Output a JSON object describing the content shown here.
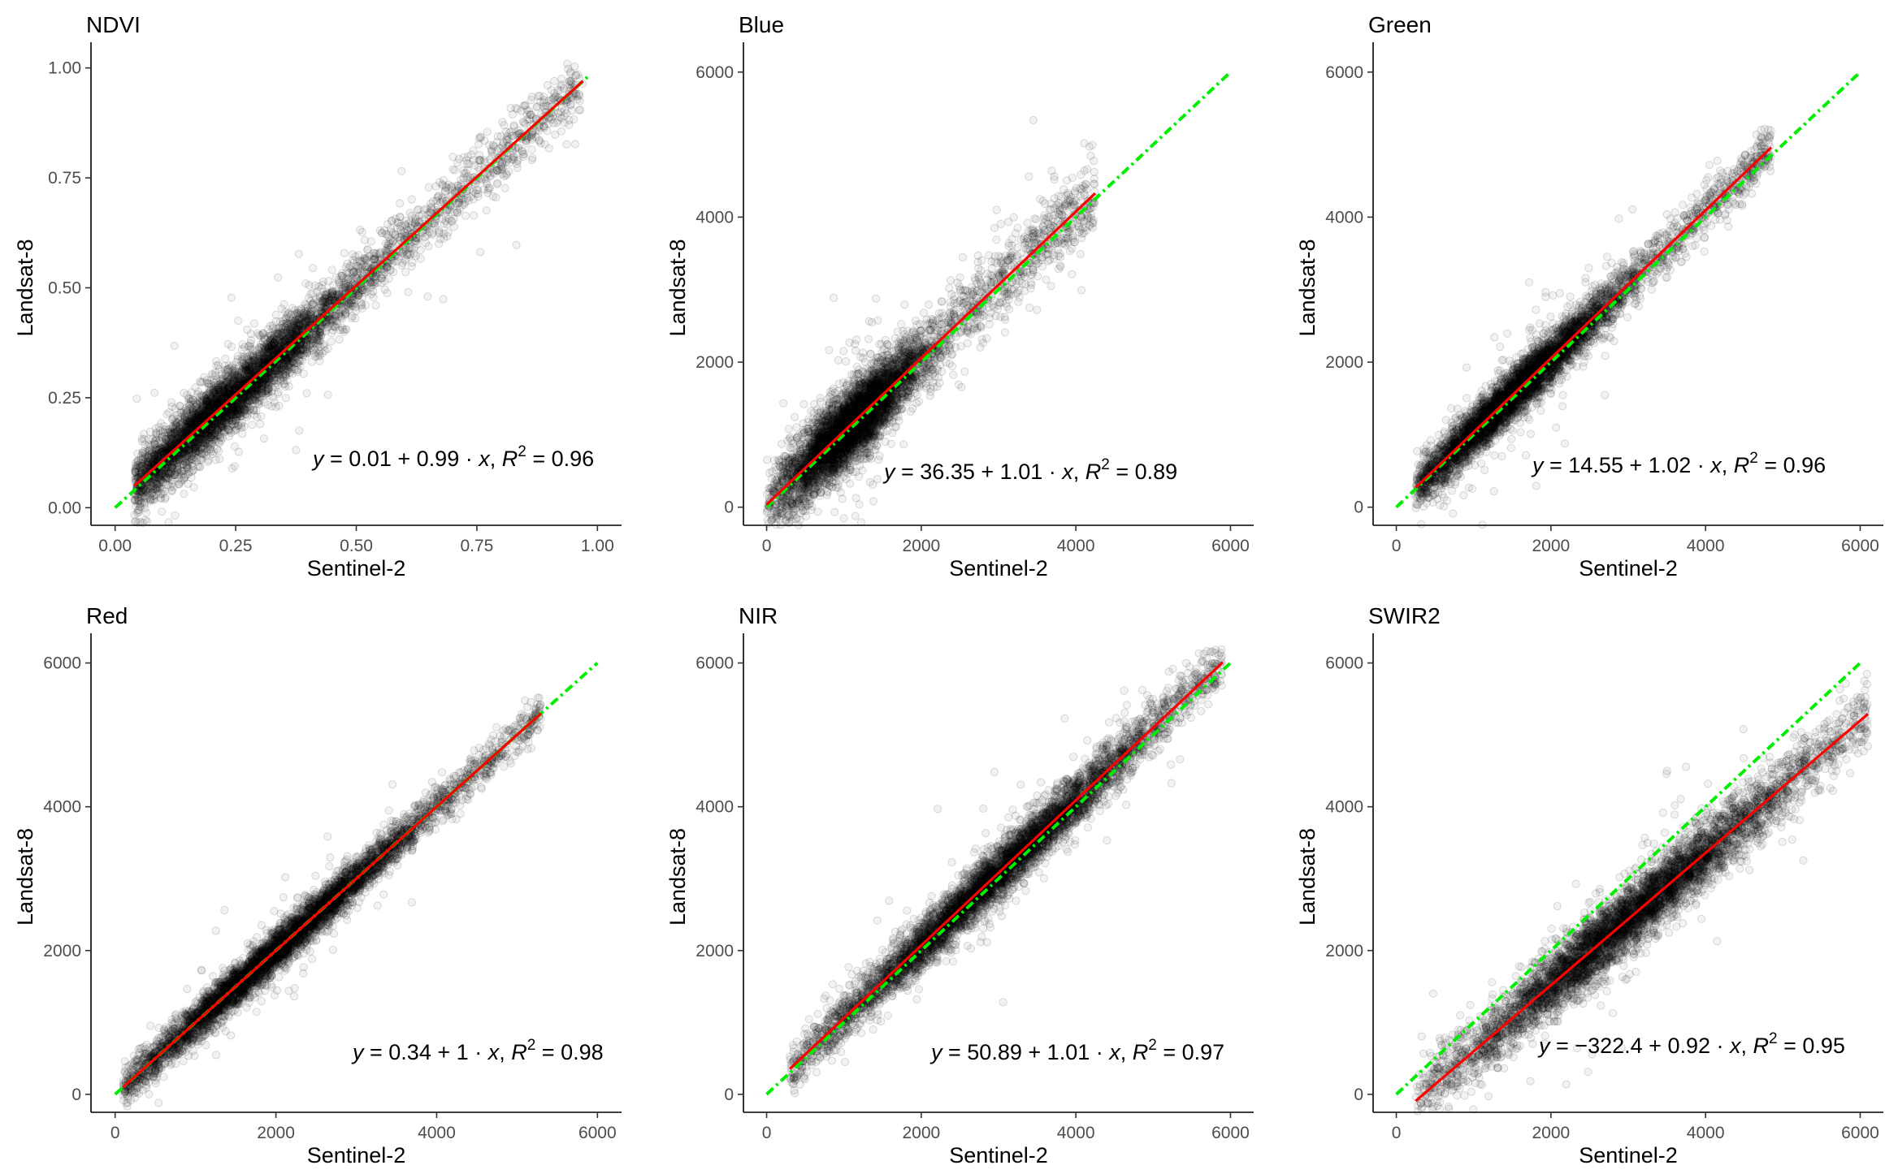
{
  "figure": {
    "xlabel": "Sentinel-2",
    "ylabel": "Landsat-8"
  },
  "colors": {
    "fit": "#ff0000",
    "one_to_one": "#00ee00",
    "points": "#000000"
  },
  "chart_data": [
    {
      "type": "scatter",
      "title": "NDVI",
      "xlabel": "Sentinel-2",
      "ylabel": "Landsat-8",
      "xlim": [
        -0.05,
        1.05
      ],
      "ylim": [
        -0.04,
        1.04
      ],
      "xticks": [
        0,
        0.25,
        0.5,
        0.75,
        1.0
      ],
      "xtick_labels": [
        "0.00",
        "0.25",
        "0.50",
        "0.75",
        "1.00"
      ],
      "yticks": [
        0,
        0.25,
        0.5,
        0.75,
        1.0
      ],
      "ytick_labels": [
        "0.00",
        "0.25",
        "0.50",
        "0.75",
        "1.00"
      ],
      "fit": {
        "intercept": 0.01,
        "slope": 0.99,
        "x_range": [
          0.04,
          0.97
        ]
      },
      "one_to_one": {
        "x_range": [
          0,
          0.98
        ]
      },
      "scatter": {
        "x_range": [
          0.04,
          0.97
        ],
        "center_x": 0.22,
        "spread_x": 0.14,
        "noise": 0.035,
        "slope": 0.99,
        "intercept": 0.01
      },
      "equation": {
        "a_sign": "",
        "a": "0.01",
        "op": "+",
        "b": "0.99",
        "r2": "0.96"
      }
    },
    {
      "type": "scatter",
      "title": "Blue",
      "xlabel": "Sentinel-2",
      "ylabel": "Landsat-8",
      "xlim": [
        -300,
        6300
      ],
      "ylim": [
        -250,
        6300
      ],
      "xticks": [
        0,
        2000,
        4000,
        6000
      ],
      "xtick_labels": [
        "0",
        "2000",
        "4000",
        "6000"
      ],
      "yticks": [
        0,
        2000,
        4000,
        6000
      ],
      "ytick_labels": [
        "0",
        "2000",
        "4000",
        "6000"
      ],
      "fit": {
        "intercept": 36.35,
        "slope": 1.01,
        "x_range": [
          0,
          4250
        ]
      },
      "one_to_one": {
        "x_range": [
          0,
          6000
        ]
      },
      "scatter": {
        "x_range": [
          0,
          4250
        ],
        "center_x": 1100,
        "spread_x": 450,
        "noise": 260,
        "slope": 1.01,
        "intercept": 36.35
      },
      "equation": {
        "a_sign": "",
        "a": "36.35",
        "op": "+",
        "b": "1.01",
        "r2": "0.89"
      }
    },
    {
      "type": "scatter",
      "title": "Green",
      "xlabel": "Sentinel-2",
      "ylabel": "Landsat-8",
      "xlim": [
        -300,
        6300
      ],
      "ylim": [
        -250,
        6300
      ],
      "xticks": [
        0,
        2000,
        4000,
        6000
      ],
      "xtick_labels": [
        "0",
        "2000",
        "4000",
        "6000"
      ],
      "yticks": [
        0,
        2000,
        4000,
        6000
      ],
      "ytick_labels": [
        "0",
        "2000",
        "4000",
        "6000"
      ],
      "fit": {
        "intercept": 14.55,
        "slope": 1.02,
        "x_range": [
          250,
          4850
        ]
      },
      "one_to_one": {
        "x_range": [
          0,
          6000
        ]
      },
      "scatter": {
        "x_range": [
          250,
          4850
        ],
        "center_x": 1500,
        "spread_x": 650,
        "noise": 170,
        "slope": 1.02,
        "intercept": 14.55
      },
      "equation": {
        "a_sign": "",
        "a": "14.55",
        "op": "+",
        "b": "1.02",
        "r2": "0.96"
      }
    },
    {
      "type": "scatter",
      "title": "Red",
      "xlabel": "Sentinel-2",
      "ylabel": "Landsat-8",
      "xlim": [
        -300,
        6300
      ],
      "ylim": [
        -250,
        6300
      ],
      "xticks": [
        0,
        2000,
        4000,
        6000
      ],
      "xtick_labels": [
        "0",
        "2000",
        "4000",
        "6000"
      ],
      "yticks": [
        0,
        2000,
        4000,
        6000
      ],
      "ytick_labels": [
        "0",
        "2000",
        "4000",
        "6000"
      ],
      "fit": {
        "intercept": 0.34,
        "slope": 1,
        "x_range": [
          100,
          5300
        ]
      },
      "one_to_one": {
        "x_range": [
          0,
          6000
        ]
      },
      "scatter": {
        "x_range": [
          100,
          5300
        ],
        "center_x": 2000,
        "spread_x": 900,
        "noise": 140,
        "slope": 1,
        "intercept": 0.34
      },
      "equation": {
        "a_sign": "",
        "a": "0.34",
        "op": "+",
        "b": "1",
        "r2": "0.98"
      }
    },
    {
      "type": "scatter",
      "title": "NIR",
      "xlabel": "Sentinel-2",
      "ylabel": "Landsat-8",
      "xlim": [
        -300,
        6300
      ],
      "ylim": [
        -250,
        6300
      ],
      "xticks": [
        0,
        2000,
        4000,
        6000
      ],
      "xtick_labels": [
        "0",
        "2000",
        "4000",
        "6000"
      ],
      "yticks": [
        0,
        2000,
        4000,
        6000
      ],
      "ytick_labels": [
        "0",
        "2000",
        "4000",
        "6000"
      ],
      "fit": {
        "intercept": 50.89,
        "slope": 1.01,
        "x_range": [
          300,
          5900
        ]
      },
      "one_to_one": {
        "x_range": [
          0,
          6000
        ]
      },
      "scatter": {
        "x_range": [
          300,
          5900
        ],
        "center_x": 2900,
        "spread_x": 1000,
        "noise": 180,
        "slope": 1.01,
        "intercept": 50.89
      },
      "equation": {
        "a_sign": "",
        "a": "50.89",
        "op": "+",
        "b": "1.01",
        "r2": "0.97"
      }
    },
    {
      "type": "scatter",
      "title": "SWIR2",
      "xlabel": "Sentinel-2",
      "ylabel": "Landsat-8",
      "xlim": [
        -300,
        6300
      ],
      "ylim": [
        -250,
        6300
      ],
      "xticks": [
        0,
        2000,
        4000,
        6000
      ],
      "xtick_labels": [
        "0",
        "2000",
        "4000",
        "6000"
      ],
      "yticks": [
        0,
        2000,
        4000,
        6000
      ],
      "ytick_labels": [
        "0",
        "2000",
        "4000",
        "6000"
      ],
      "fit": {
        "intercept": -322.4,
        "slope": 0.92,
        "x_range": [
          250,
          6100
        ]
      },
      "one_to_one": {
        "x_range": [
          0,
          6000
        ]
      },
      "scatter": {
        "x_range": [
          250,
          6100
        ],
        "center_x": 3000,
        "spread_x": 1000,
        "noise": 230,
        "slope": 0.92,
        "intercept": -322.4
      },
      "equation": {
        "a_sign": "−",
        "a": "322.4",
        "op": "+",
        "b": "0.92",
        "r2": "0.95"
      }
    }
  ]
}
